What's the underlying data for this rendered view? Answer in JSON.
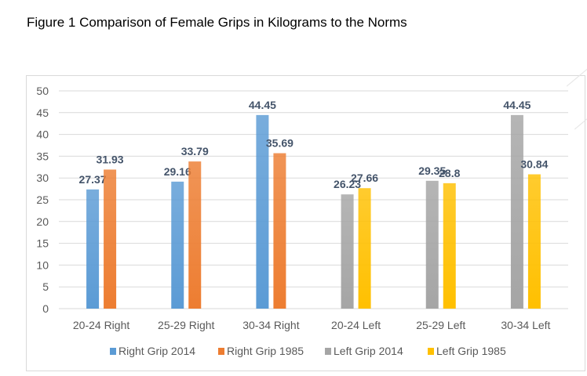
{
  "figure_title": "Figure 1 Comparison of Female Grips in Kilograms to the Norms",
  "colors": {
    "right_2014": "#5b9bd5",
    "right_1985": "#ed7d31",
    "left_2014": "#a5a5a5",
    "left_1985": "#ffc000",
    "grid": "#d9d9d9",
    "label": "#44546a",
    "tick": "#595959"
  },
  "chart_data": {
    "type": "bar",
    "title": "",
    "xlabel": "",
    "ylabel": "",
    "ylim": [
      0,
      50
    ],
    "yticks": [
      "0",
      "5",
      "10",
      "15",
      "20",
      "25",
      "30",
      "35",
      "40",
      "45",
      "50"
    ],
    "grid": true,
    "legend_position": "bottom",
    "categories": [
      "20-24 Right",
      "25-29 Right",
      "30-34 Right",
      "20-24 Left",
      "25-29 Left",
      "30-34 Left"
    ],
    "series": [
      {
        "name": "Right Grip 2014",
        "color": "#5b9bd5",
        "values": [
          27.37,
          29.16,
          44.45,
          null,
          null,
          null
        ],
        "labels": [
          "27.37",
          "29.16",
          "44.45",
          "",
          "",
          ""
        ]
      },
      {
        "name": "Right Grip 1985",
        "color": "#ed7d31",
        "values": [
          31.93,
          33.79,
          35.69,
          null,
          null,
          null
        ],
        "labels": [
          "31.93",
          "33.79",
          "35.69",
          "",
          "",
          ""
        ]
      },
      {
        "name": "Left Grip 2014",
        "color": "#a5a5a5",
        "values": [
          null,
          null,
          null,
          26.23,
          29.35,
          44.45
        ],
        "labels": [
          "",
          "",
          "",
          "26.23",
          "29.35",
          "44.45"
        ]
      },
      {
        "name": "Left Grip 1985",
        "color": "#ffc000",
        "values": [
          null,
          null,
          null,
          27.66,
          28.8,
          30.84
        ],
        "labels": [
          "",
          "",
          "",
          "27.66",
          "28.8",
          "30.84"
        ]
      }
    ]
  }
}
